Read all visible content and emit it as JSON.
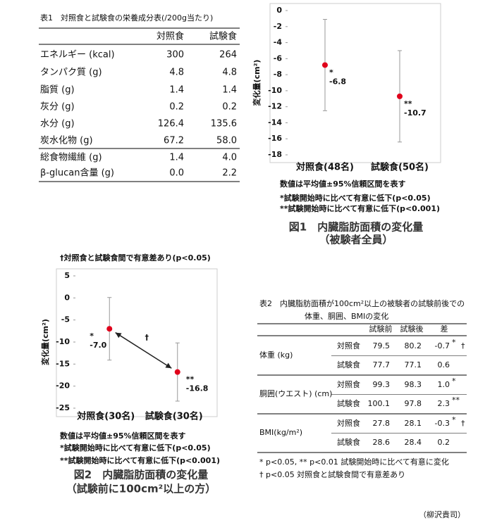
{
  "table1": {
    "title": "表1　対照食と試験食の栄養成分表(/200g当たり)",
    "header": [
      "対照食",
      "試験食"
    ],
    "rows": [
      [
        "エネルギー (kcal)",
        "300",
        "264"
      ],
      [
        "タンパク質 (g)",
        "4.8",
        "4.8"
      ],
      [
        "脂質 (g)",
        "1.4",
        "1.4"
      ],
      [
        "灰分 (g)",
        "0.2",
        "0.2"
      ],
      [
        "水分 (g)",
        "126.4",
        "135.6"
      ],
      [
        "炭水化物 (g)",
        "67.2",
        "58.0"
      ],
      [
        "総食物繊維 (g)",
        "1.4",
        "4.0"
      ],
      [
        "β-glucan含量 (g)",
        "0.0",
        "2.2"
      ]
    ]
  },
  "chart_data": [
    {
      "type": "dot",
      "y_label": "変化量(cm²)",
      "categories": [
        "対照食(48名)",
        "試験食(50名)"
      ],
      "values": [
        -6.8,
        -10.7
      ],
      "errors": [
        5.7,
        5.7
      ],
      "marks": [
        "*",
        "**"
      ],
      "color": "#e0001b",
      "ylim": [
        -18,
        0
      ],
      "yticks": [
        0,
        -2,
        -4,
        -6,
        -8,
        -10,
        -12,
        -14,
        -16,
        -18
      ],
      "notes": [
        "数値は平均値±95%信頼区間を表す",
        "*試験開始時に比べて有意に低下(p<0.05)",
        "**試験開始時に比べて有意に低下(p<0.001)"
      ],
      "caption": [
        "図1　内臓脂肪面積の変化量",
        "（被験者全員）"
      ]
    },
    {
      "type": "dot",
      "subtitle": "†対照食と試験食間で有意差あり(p<0.05)",
      "y_label": "変化量(cm²)",
      "categories": [
        "対照食(30名)",
        "試験食(30名)"
      ],
      "values": [
        -7.0,
        -16.8
      ],
      "value_labels": [
        "-7.0",
        "-16.8"
      ],
      "errors": [
        7.1,
        6.6
      ],
      "marks": [
        "*",
        "**"
      ],
      "arrow_label": "†",
      "color": "#e0001b",
      "ylim": [
        -25,
        5
      ],
      "yticks": [
        5,
        0,
        -5,
        -10,
        -15,
        -20,
        -25
      ],
      "notes": [
        "数値は平均値±95%信頼区間を表す",
        "*試験開始時に比べて有意に低下(p<0.05)",
        "**試験開始時に比べて有意に低下(p<0.001)"
      ],
      "caption": [
        "図2　内臓脂肪面積の変化量",
        "（試験前に100cm²以上の方）"
      ]
    }
  ],
  "table2": {
    "title": [
      "表2　内臓脂肪面積が100cm²以上の被験者の試験前後での",
      "体重、胴囲、BMIの変化"
    ],
    "header": [
      "試験前",
      "試験後",
      "差"
    ],
    "groups": [
      {
        "label": "体重 (kg)",
        "rows": [
          [
            "対照食",
            "79.5",
            "80.2",
            "-0.7",
            "*",
            "†"
          ],
          [
            "試験食",
            "77.7",
            "77.1",
            "0.6"
          ]
        ]
      },
      {
        "label": "胴囲(ウエスト) (cm)",
        "rows": [
          [
            "対照食",
            "99.3",
            "98.3",
            "1.0",
            "*"
          ],
          [
            "試験食",
            "100.1",
            "97.8",
            "2.3",
            "**"
          ]
        ]
      },
      {
        "label": "BMI(kg/m²)",
        "rows": [
          [
            "対照食",
            "27.8",
            "28.1",
            "-0.3",
            "*",
            "†"
          ],
          [
            "試験食",
            "28.6",
            "28.4",
            "0.2"
          ]
        ]
      }
    ],
    "notes": [
      "* p<0.05, ** p<0.01 試験開始時に比べて有意に変化",
      "† p<0.05 対照食と試験食間で有意差あり"
    ]
  },
  "credit": "（柳沢貴司）"
}
